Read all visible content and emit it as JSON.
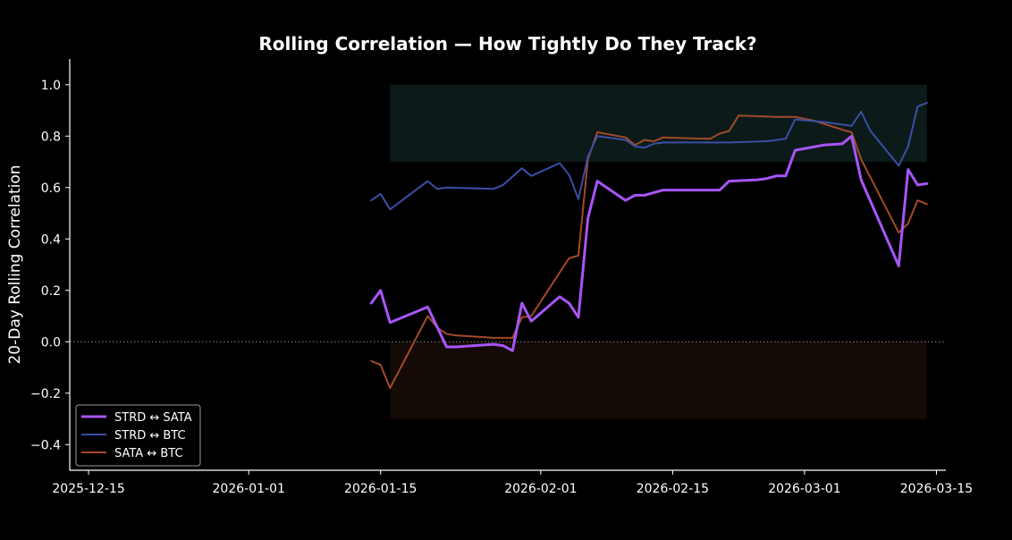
{
  "chart_data": {
    "type": "line",
    "title": "Rolling Correlation — How Tightly Do They Track?",
    "xlabel": "",
    "ylabel": "20-Day Rolling Correlation",
    "x_axis_type": "date",
    "xlim": [
      "2025-12-15",
      "2026-03-15"
    ],
    "ylim": [
      -0.5,
      1.1
    ],
    "x_ticks": [
      "2025-12-15",
      "2026-01-01",
      "2026-01-15",
      "2026-02-01",
      "2026-02-15",
      "2026-03-01",
      "2026-03-15"
    ],
    "y_ticks": [
      "1.0",
      "0.8",
      "0.6",
      "0.4",
      "0.2",
      "0.0",
      "−0.2",
      "−0.4"
    ],
    "y_tick_values": [
      1.0,
      0.8,
      0.6,
      0.4,
      0.2,
      0.0,
      -0.2,
      -0.4
    ],
    "grid": false,
    "zero_line": true,
    "bands": [
      {
        "from": 0.7,
        "to": 1.0,
        "color": "#0c1a1a",
        "x_from": "2026-01-16",
        "x_to": "2026-03-14"
      },
      {
        "from": -0.3,
        "to": 0.0,
        "color": "#140a06",
        "x_from": "2026-01-16",
        "x_to": "2026-03-14"
      }
    ],
    "legend_position": "lower-left",
    "series": [
      {
        "name": "STRD ↔ SATA",
        "color": "#a855f7",
        "width": 3,
        "points": [
          [
            "2026-01-14",
            0.15
          ],
          [
            "2026-01-15",
            0.2
          ],
          [
            "2026-01-16",
            0.075
          ],
          [
            "2026-01-20",
            0.135
          ],
          [
            "2026-01-22",
            -0.02
          ],
          [
            "2026-01-23",
            -0.02
          ],
          [
            "2026-01-27",
            -0.01
          ],
          [
            "2026-01-28",
            -0.015
          ],
          [
            "2026-01-29",
            -0.035
          ],
          [
            "2026-01-30",
            0.15
          ],
          [
            "2026-01-31",
            0.08
          ],
          [
            "2026-02-03",
            0.175
          ],
          [
            "2026-02-04",
            0.15
          ],
          [
            "2026-02-05",
            0.095
          ],
          [
            "2026-02-06",
            0.48
          ],
          [
            "2026-02-07",
            0.625
          ],
          [
            "2026-02-10",
            0.55
          ],
          [
            "2026-02-11",
            0.57
          ],
          [
            "2026-02-12",
            0.57
          ],
          [
            "2026-02-13",
            0.58
          ],
          [
            "2026-02-14",
            0.59
          ],
          [
            "2026-02-18",
            0.59
          ],
          [
            "2026-02-19",
            0.59
          ],
          [
            "2026-02-20",
            0.59
          ],
          [
            "2026-02-21",
            0.625
          ],
          [
            "2026-02-24",
            0.63
          ],
          [
            "2026-02-25",
            0.635
          ],
          [
            "2026-02-26",
            0.645
          ],
          [
            "2026-02-27",
            0.645
          ],
          [
            "2026-02-28",
            0.745
          ],
          [
            "2026-03-03",
            0.765
          ],
          [
            "2026-03-05",
            0.77
          ],
          [
            "2026-03-06",
            0.8
          ],
          [
            "2026-03-07",
            0.63
          ],
          [
            "2026-03-11",
            0.295
          ],
          [
            "2026-03-12",
            0.67
          ],
          [
            "2026-03-13",
            0.61
          ],
          [
            "2026-03-14",
            0.615
          ]
        ]
      },
      {
        "name": "STRD ↔ BTC",
        "color": "#3b4ea5",
        "width": 2,
        "points": [
          [
            "2026-01-14",
            0.55
          ],
          [
            "2026-01-15",
            0.575
          ],
          [
            "2026-01-16",
            0.515
          ],
          [
            "2026-01-20",
            0.625
          ],
          [
            "2026-01-21",
            0.595
          ],
          [
            "2026-01-22",
            0.6
          ],
          [
            "2026-01-27",
            0.595
          ],
          [
            "2026-01-28",
            0.61
          ],
          [
            "2026-01-30",
            0.675
          ],
          [
            "2026-01-31",
            0.645
          ],
          [
            "2026-02-03",
            0.695
          ],
          [
            "2026-02-04",
            0.65
          ],
          [
            "2026-02-05",
            0.555
          ],
          [
            "2026-02-06",
            0.72
          ],
          [
            "2026-02-07",
            0.8
          ],
          [
            "2026-02-10",
            0.785
          ],
          [
            "2026-02-11",
            0.76
          ],
          [
            "2026-02-12",
            0.755
          ],
          [
            "2026-02-13",
            0.77
          ],
          [
            "2026-02-14",
            0.775
          ],
          [
            "2026-02-19",
            0.775
          ],
          [
            "2026-02-21",
            0.775
          ],
          [
            "2026-02-25",
            0.78
          ],
          [
            "2026-02-26",
            0.785
          ],
          [
            "2026-02-27",
            0.79
          ],
          [
            "2026-02-28",
            0.865
          ],
          [
            "2026-03-03",
            0.855
          ],
          [
            "2026-03-06",
            0.84
          ],
          [
            "2026-03-07",
            0.895
          ],
          [
            "2026-03-08",
            0.82
          ],
          [
            "2026-03-11",
            0.685
          ],
          [
            "2026-03-12",
            0.76
          ],
          [
            "2026-03-13",
            0.915
          ],
          [
            "2026-03-14",
            0.93
          ]
        ]
      },
      {
        "name": "SATA ↔ BTC",
        "color": "#a34a2a",
        "width": 2,
        "points": [
          [
            "2026-01-14",
            -0.075
          ],
          [
            "2026-01-15",
            -0.09
          ],
          [
            "2026-01-16",
            -0.18
          ],
          [
            "2026-01-20",
            0.1
          ],
          [
            "2026-01-21",
            0.055
          ],
          [
            "2026-01-22",
            0.03
          ],
          [
            "2026-01-23",
            0.025
          ],
          [
            "2026-01-27",
            0.015
          ],
          [
            "2026-01-28",
            0.015
          ],
          [
            "2026-01-29",
            0.015
          ],
          [
            "2026-01-30",
            0.095
          ],
          [
            "2026-01-31",
            0.1
          ],
          [
            "2026-02-04",
            0.325
          ],
          [
            "2026-02-05",
            0.335
          ],
          [
            "2026-02-06",
            0.71
          ],
          [
            "2026-02-07",
            0.815
          ],
          [
            "2026-02-10",
            0.795
          ],
          [
            "2026-02-11",
            0.765
          ],
          [
            "2026-02-12",
            0.785
          ],
          [
            "2026-02-13",
            0.78
          ],
          [
            "2026-02-14",
            0.795
          ],
          [
            "2026-02-18",
            0.79
          ],
          [
            "2026-02-19",
            0.79
          ],
          [
            "2026-02-20",
            0.81
          ],
          [
            "2026-02-21",
            0.82
          ],
          [
            "2026-02-22",
            0.88
          ],
          [
            "2026-02-26",
            0.875
          ],
          [
            "2026-02-28",
            0.875
          ],
          [
            "2026-03-02",
            0.86
          ],
          [
            "2026-03-05",
            0.825
          ],
          [
            "2026-03-06",
            0.815
          ],
          [
            "2026-03-07",
            0.71
          ],
          [
            "2026-03-11",
            0.425
          ],
          [
            "2026-03-12",
            0.46
          ],
          [
            "2026-03-13",
            0.55
          ],
          [
            "2026-03-14",
            0.535
          ]
        ]
      }
    ]
  }
}
